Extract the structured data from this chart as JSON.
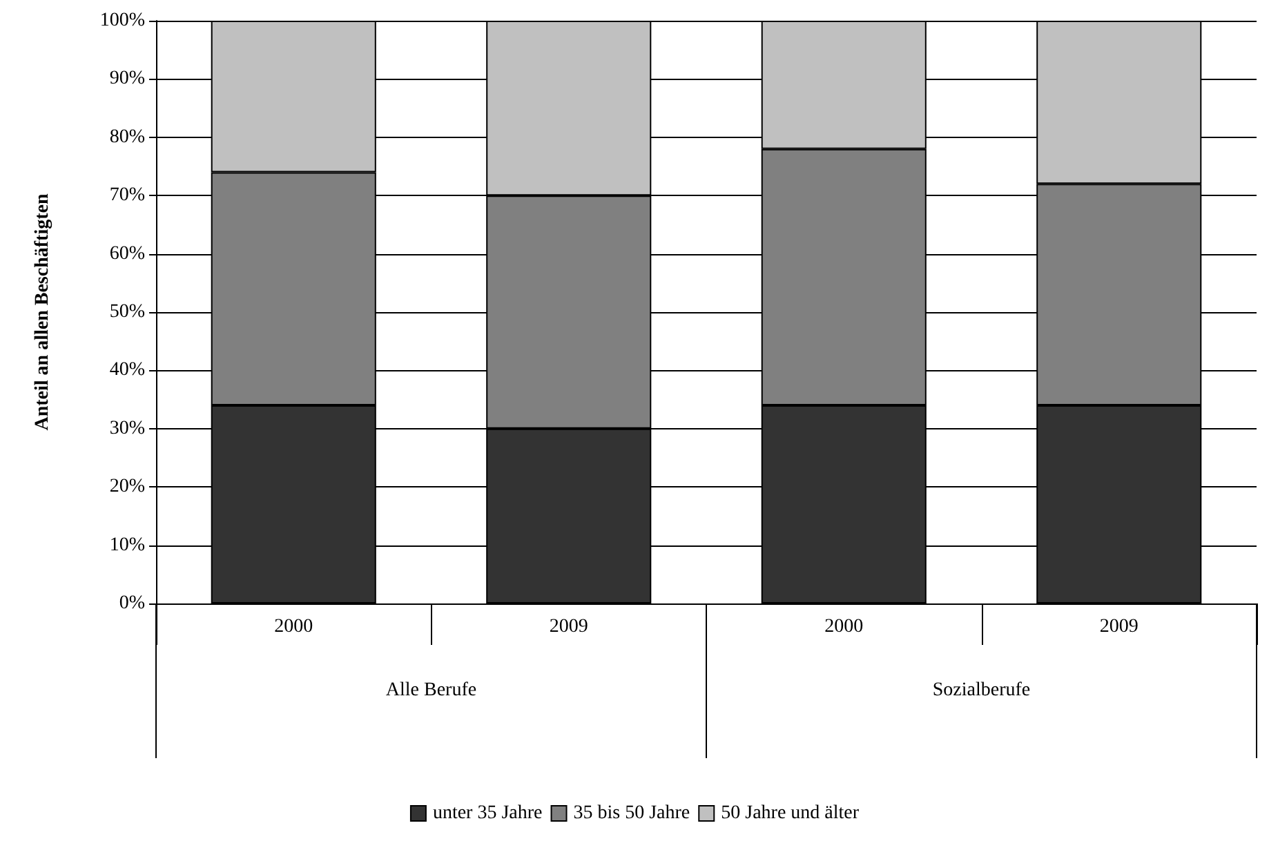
{
  "chart_data": {
    "type": "bar",
    "stacked": true,
    "ylabel": "Anteil an allen Beschäftigten",
    "categories": [
      "2000",
      "2009",
      "2000",
      "2009"
    ],
    "series": [
      {
        "name": "unter 35 Jahre",
        "color": "#333333",
        "values": [
          34,
          30,
          34,
          34
        ]
      },
      {
        "name": "35 bis 50 Jahre",
        "color": "#808080",
        "values": [
          40,
          40,
          44,
          38
        ]
      },
      {
        "name": "50 Jahre und älter",
        "color": "#c0c0c0",
        "values": [
          26,
          30,
          22,
          28
        ]
      }
    ],
    "annotations": [
      "Alle Berufe",
      "Sozialberufe"
    ],
    "ylim": [
      0,
      100
    ],
    "yticks": [
      {
        "value": 0,
        "label": "0%"
      },
      {
        "value": 10,
        "label": "10%"
      },
      {
        "value": 20,
        "label": "20%"
      },
      {
        "value": 30,
        "label": "30%"
      },
      {
        "value": 40,
        "label": "40%"
      },
      {
        "value": 50,
        "label": "50%"
      },
      {
        "value": 60,
        "label": "60%"
      },
      {
        "value": 70,
        "label": "70%"
      },
      {
        "value": 80,
        "label": "80%"
      },
      {
        "value": 90,
        "label": "90%"
      },
      {
        "value": 100,
        "label": "100%"
      }
    ],
    "grid": "y",
    "legend": "bottom"
  }
}
